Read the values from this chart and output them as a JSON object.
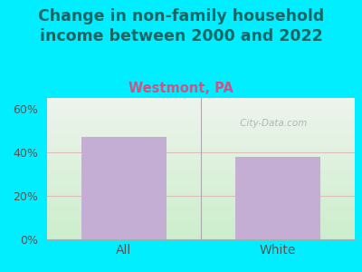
{
  "title": "Change in non-family household\nincome between 2000 and 2022",
  "subtitle": "Westmont, PA",
  "categories": [
    "All",
    "White"
  ],
  "values": [
    47,
    38
  ],
  "bar_color": "#c4aed4",
  "title_fontsize": 12.5,
  "subtitle_fontsize": 10.5,
  "subtitle_color": "#cc5588",
  "title_color": "#1a6666",
  "tick_color": "#555555",
  "background_outer": "#00eeff",
  "background_inner_top": "#eef4ee",
  "background_inner_bottom": "#cceecc",
  "ylim": [
    0,
    65
  ],
  "yticks": [
    0,
    20,
    40,
    60
  ],
  "ytick_labels": [
    "0%",
    "20%",
    "40%",
    "60%"
  ],
  "watermark": " City-Data.com",
  "gridline_color": "#ddbcbc",
  "axis_line_color": "#aaaaaa",
  "gridlines_at": [
    20,
    40
  ]
}
